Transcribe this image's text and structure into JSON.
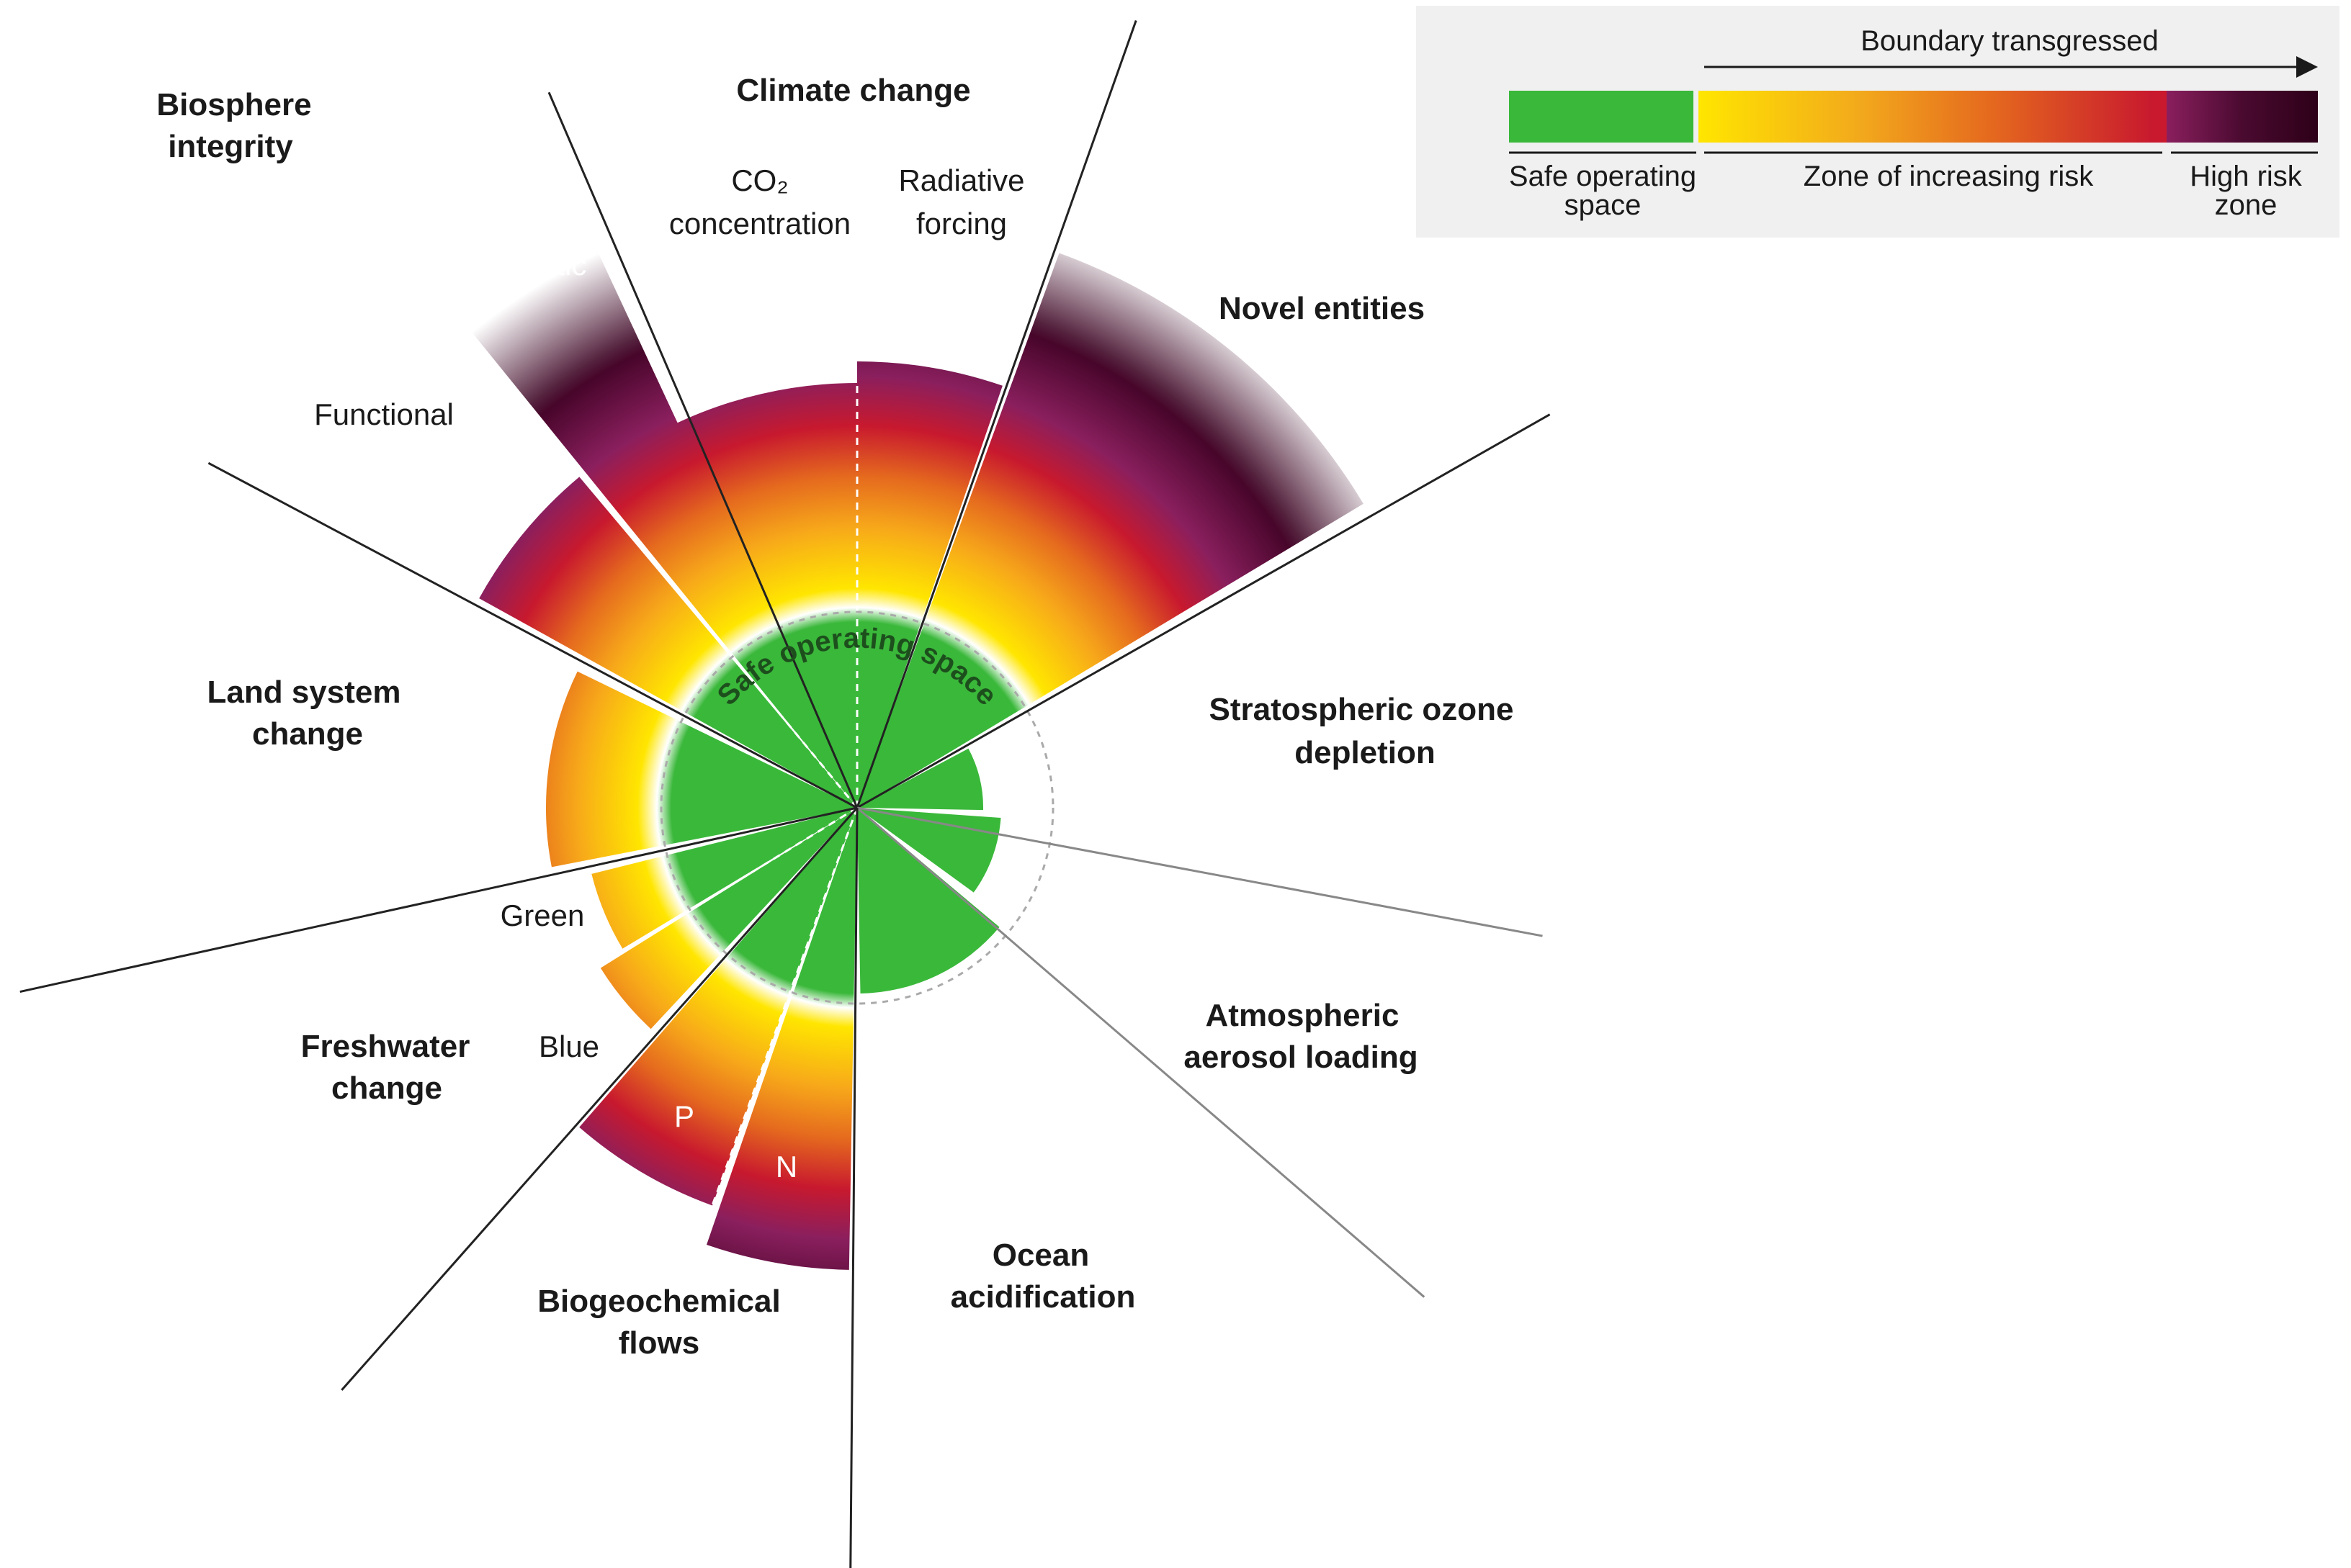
{
  "legend": {
    "arrow_label": "Boundary transgressed",
    "safe_label_line1": "Safe operating",
    "safe_label_line2": "space",
    "risk_label": "Zone of increasing risk",
    "high_label_line1": "High risk",
    "high_label_line2": "zone",
    "colors": {
      "safe": "#3ab83a",
      "risk_start": "#ffe600",
      "risk_mid": "#e87a1e",
      "risk_end": "#c8192e",
      "high_start": "#8a1f5e",
      "high_end": "#2e0018"
    }
  },
  "center_label": "Safe operating space",
  "categories": {
    "climate": "Climate change",
    "co2_line1": "CO₂",
    "co2_line2": "concentration",
    "rad_line1": "Radiative",
    "rad_line2": "forcing",
    "novel": "Novel entities",
    "ozone_line1": "Stratospheric ozone",
    "ozone_line2": "depletion",
    "aerosol_line1": "Atmospheric",
    "aerosol_line2": "aerosol loading",
    "ocean_line1": "Ocean",
    "ocean_line2": "acidification",
    "biogeo_line1": "Biogeochemical",
    "biogeo_line2": "flows",
    "p_label": "P",
    "n_label": "N",
    "fresh_line1": "Freshwater",
    "fresh_line2": "change",
    "green_label": "Green",
    "blue_label": "Blue",
    "land_line1": "Land system",
    "land_line2": "change",
    "bio_line1": "Biosphere",
    "bio_line2": "integrity",
    "functional_label": "Functional",
    "genetic_label": "Genetic"
  }
}
